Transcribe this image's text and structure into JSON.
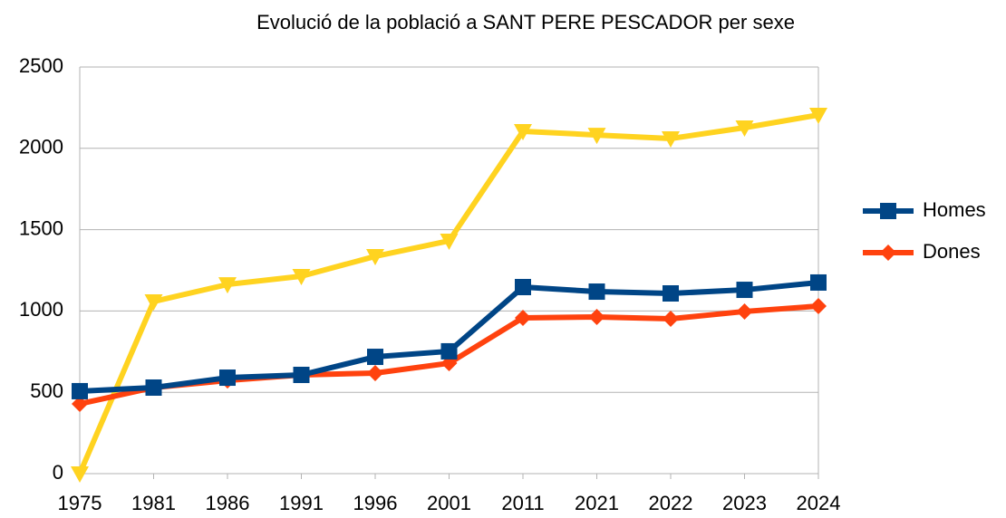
{
  "chart_data": {
    "type": "line",
    "title": "Evolució de la població a SANT PERE PESCADOR per sexe",
    "categories": [
      "1975",
      "1981",
      "1986",
      "1991",
      "1996",
      "2001",
      "2011",
      "2021",
      "2022",
      "2023",
      "2024"
    ],
    "series": [
      {
        "name": "Homes",
        "color": "#004586",
        "marker": "square",
        "values": [
          507,
          529,
          590,
          607,
          718,
          752,
          1147,
          1119,
          1108,
          1130,
          1175
        ]
      },
      {
        "name": "Dones",
        "color": "#ff420e",
        "marker": "diamond",
        "values": [
          429,
          529,
          573,
          607,
          618,
          679,
          958,
          963,
          952,
          997,
          1030
        ]
      },
      {
        "color": "#ffd320",
        "marker": "triangle-down",
        "values": [
          0,
          1058,
          1163,
          1214,
          1336,
          1431,
          2105,
          2082,
          2060,
          2127,
          2205
        ]
      }
    ],
    "ylim": [
      0,
      2500
    ],
    "yticks": [
      0,
      500,
      1000,
      1500,
      2000,
      2500
    ],
    "grid": true,
    "legend": "right"
  }
}
